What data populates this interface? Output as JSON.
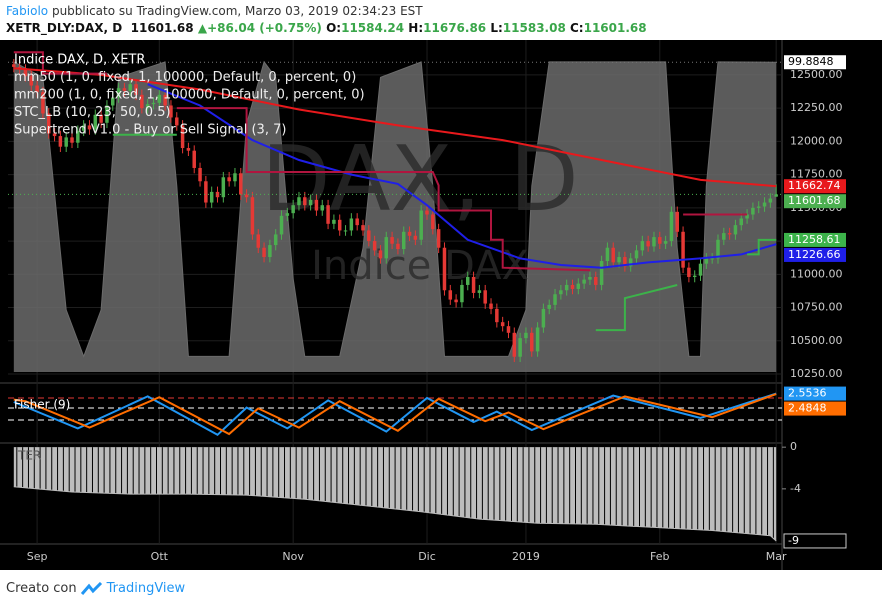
{
  "header": {
    "author": "Fabiolo",
    "published": "pubblicato su TradingView.com, Marzo 03, 2019 02:34:23 EST",
    "symbol": "XETR_DLY:DAX, D",
    "change": "+86.04 (+0.75%)",
    "open_label": "O:",
    "high_label": "H:",
    "low_label": "L:",
    "close_label": "C:"
  },
  "footer": {
    "created": "Creato con",
    "brand": "TradingView"
  },
  "chart_data": [
    {
      "type": "candlestick",
      "name": "Indice DAX, D, XETR",
      "up_color": "#4caf50",
      "down_color": "#e53935",
      "grid": true,
      "price_line": true,
      "watermark": [
        "DAX, D",
        "Indice DAX"
      ],
      "xlim": [
        -1,
        132
      ],
      "xticks": [
        {
          "value": 4,
          "label": "Sep"
        },
        {
          "value": 25,
          "label": "Ott"
        },
        {
          "value": 48,
          "label": "Nov"
        },
        {
          "value": 71,
          "label": "Dic"
        },
        {
          "value": 88,
          "label": "2019"
        },
        {
          "value": 111,
          "label": "Feb"
        },
        {
          "value": 131,
          "label": "Mar"
        }
      ],
      "ylim": [
        10205,
        12710
      ],
      "yticks": [
        {
          "value": 10250,
          "label": "10250.00"
        },
        {
          "value": 10500,
          "label": "10500.00"
        },
        {
          "value": 10750,
          "label": "10750.00"
        },
        {
          "value": 11000,
          "label": "11000.00"
        },
        {
          "value": 11250,
          "label": "11250.00"
        },
        {
          "value": 11500,
          "label": "11500.00"
        },
        {
          "value": 11750,
          "label": "11750.00"
        },
        {
          "value": 12000,
          "label": "12000.00"
        },
        {
          "value": 12250,
          "label": "12250.00"
        },
        {
          "value": 12500,
          "label": "12500.00"
        }
      ],
      "y2lim": [
        -2.6,
        104.8
      ],
      "open": [
        12580,
        12560,
        12540,
        12490,
        12420,
        12370,
        12210,
        12060,
        12040,
        11960,
        12030,
        11990,
        12080,
        12120,
        12090,
        12200,
        12140,
        12270,
        12330,
        12400,
        12380,
        12430,
        12350,
        12250,
        12280,
        12290,
        12350,
        12270,
        12180,
        12120,
        11950,
        11930,
        11800,
        11700,
        11540,
        11620,
        11580,
        11730,
        11700,
        11760,
        11600,
        11580,
        11300,
        11200,
        11130,
        11220,
        11300,
        11440,
        11460,
        11520,
        11580,
        11520,
        11560,
        11480,
        11520,
        11380,
        11410,
        11330,
        11330,
        11420,
        11370,
        11330,
        11250,
        11180,
        11120,
        11280,
        11230,
        11190,
        11320,
        11290,
        11260,
        11480,
        11450,
        11340,
        11200,
        10880,
        10810,
        10790,
        10920,
        10980,
        10860,
        10880,
        10780,
        10740,
        10640,
        10610,
        10560,
        10380,
        10520,
        10560,
        10420,
        10600,
        10740,
        10770,
        10850,
        10880,
        10920,
        10890,
        10930,
        10960,
        10980,
        10920,
        11100,
        11200,
        11090,
        11130,
        11060,
        11120,
        11180,
        11250,
        11210,
        11280,
        11230,
        11250,
        11470,
        11320,
        11050,
        10980,
        10990,
        11080,
        11120,
        11120,
        11260,
        11310,
        11300,
        11370,
        11420,
        11450,
        11500,
        11510,
        11540,
        11584.24
      ],
      "high": [
        12620,
        12600,
        12580,
        12530,
        12460,
        12410,
        12250,
        12100,
        12080,
        12070,
        12070,
        12120,
        12160,
        12160,
        12240,
        12240,
        12310,
        12370,
        12440,
        12440,
        12470,
        12470,
        12390,
        12320,
        12330,
        12390,
        12390,
        12310,
        12220,
        12160,
        11990,
        11970,
        11840,
        11740,
        11660,
        11660,
        11770,
        11770,
        11800,
        11800,
        11640,
        11620,
        11340,
        11240,
        11260,
        11340,
        11480,
        11500,
        11560,
        11620,
        11620,
        11600,
        11600,
        11560,
        11560,
        11450,
        11450,
        11370,
        11460,
        11460,
        11410,
        11370,
        11290,
        11220,
        11320,
        11320,
        11270,
        11360,
        11360,
        11330,
        11520,
        11520,
        11490,
        11380,
        11240,
        10920,
        10850,
        10960,
        11020,
        11020,
        10920,
        10920,
        10820,
        10780,
        10680,
        10650,
        10600,
        10560,
        10600,
        10600,
        10640,
        10780,
        10810,
        10890,
        10920,
        10960,
        10960,
        10970,
        11000,
        11020,
        11020,
        11140,
        11240,
        11240,
        11170,
        11170,
        11160,
        11220,
        11290,
        11290,
        11320,
        11320,
        11290,
        11510,
        11510,
        11360,
        11090,
        11030,
        11120,
        11160,
        11160,
        11300,
        11350,
        11350,
        11410,
        11460,
        11490,
        11540,
        11550,
        11580,
        11610,
        11676.86
      ],
      "low": [
        12520,
        12500,
        12450,
        12380,
        12330,
        12170,
        12020,
        12000,
        11920,
        11920,
        11950,
        11950,
        12040,
        12050,
        12050,
        12100,
        12100,
        12230,
        12290,
        12340,
        12340,
        12310,
        12210,
        12210,
        12240,
        12250,
        12230,
        12140,
        12080,
        11910,
        11890,
        11760,
        11660,
        11500,
        11500,
        11540,
        11540,
        11660,
        11660,
        11560,
        11540,
        11260,
        11160,
        11090,
        11090,
        11180,
        11260,
        11400,
        11420,
        11480,
        11480,
        11480,
        11440,
        11440,
        11340,
        11340,
        11290,
        11290,
        11290,
        11330,
        11290,
        11210,
        11140,
        11080,
        11080,
        11190,
        11150,
        11150,
        11250,
        11220,
        11220,
        11410,
        11300,
        11160,
        10840,
        10770,
        10750,
        10750,
        10880,
        10820,
        10820,
        10740,
        10700,
        10600,
        10570,
        10520,
        10340,
        10340,
        10480,
        10380,
        10380,
        10560,
        10700,
        10730,
        10810,
        10840,
        10850,
        10850,
        10890,
        10920,
        10880,
        10880,
        11060,
        11050,
        11050,
        11020,
        11020,
        11080,
        11140,
        11170,
        11170,
        11190,
        11190,
        11210,
        11280,
        11010,
        10940,
        10940,
        10950,
        11040,
        11080,
        11080,
        11220,
        11260,
        11260,
        11330,
        11380,
        11410,
        11460,
        11470,
        11500,
        11583.08
      ],
      "close": [
        12560,
        12540,
        12490,
        12420,
        12370,
        12210,
        12060,
        12040,
        11960,
        12030,
        11990,
        12080,
        12120,
        12090,
        12200,
        12140,
        12270,
        12330,
        12400,
        12380,
        12430,
        12350,
        12250,
        12280,
        12290,
        12350,
        12270,
        12180,
        12120,
        11950,
        11930,
        11800,
        11700,
        11540,
        11620,
        11580,
        11730,
        11700,
        11760,
        11600,
        11580,
        11300,
        11200,
        11130,
        11220,
        11300,
        11440,
        11460,
        11520,
        11580,
        11520,
        11560,
        11480,
        11520,
        11380,
        11410,
        11330,
        11330,
        11420,
        11370,
        11330,
        11250,
        11180,
        11120,
        11280,
        11230,
        11190,
        11320,
        11290,
        11260,
        11480,
        11450,
        11340,
        11200,
        10880,
        10810,
        10790,
        10920,
        10980,
        10860,
        10880,
        10780,
        10740,
        10640,
        10610,
        10560,
        10380,
        10520,
        10560,
        10420,
        10600,
        10740,
        10770,
        10850,
        10880,
        10920,
        10890,
        10930,
        10960,
        10980,
        10920,
        11100,
        11200,
        11090,
        11130,
        11060,
        11120,
        11180,
        11250,
        11210,
        11280,
        11230,
        11250,
        11470,
        11320,
        11050,
        10980,
        10990,
        11080,
        11120,
        11120,
        11260,
        11310,
        11300,
        11370,
        11420,
        11450,
        11500,
        11510,
        11540,
        11570,
        11601.68
      ],
      "series": [
        {
          "name": "mm50 (1, 0, fixed, 1, 100000, Default, 0, percent, 0)",
          "color": "#1f1fe8",
          "price_label": true,
          "x": [
            23,
            32,
            41,
            49,
            58,
            66,
            71,
            78,
            87,
            94,
            101,
            109,
            118,
            125,
            131
          ],
          "values": [
            12430,
            12270,
            12010,
            11860,
            11750,
            11680,
            11520,
            11260,
            11120,
            11070,
            11050,
            11090,
            11120,
            11150,
            11226.66
          ]
        },
        {
          "name": "mm200 (1, 0, fixed, 1, 100000, Default, 0, percent, 0)",
          "color": "#e8191c",
          "price_label": true,
          "x": [
            0,
            15,
            32,
            49,
            66,
            84,
            101,
            118,
            131
          ],
          "values": [
            12550,
            12500,
            12390,
            12240,
            12120,
            12010,
            11860,
            11710,
            11662.74
          ]
        },
        {
          "name": "STC_LB (10, 23, 50, 0.5)",
          "type": "area",
          "axis": "y2",
          "color": "#6b6b6b",
          "price_label": true,
          "price_line": true,
          "label_background": "#ffffff",
          "x": [
            0,
            5,
            9,
            12,
            15,
            18,
            26,
            28,
            30,
            37,
            40,
            43,
            45,
            48,
            50,
            56,
            60,
            63,
            70,
            72,
            74,
            85,
            88,
            89,
            92,
            112,
            114,
            116,
            118,
            119,
            121,
            131
          ],
          "values": [
            100,
            95,
            20,
            5,
            20,
            95,
            100,
            60,
            5,
            5,
            80,
            100,
            95,
            30,
            5,
            5,
            40,
            95,
            100,
            60,
            5,
            5,
            20,
            60,
            100,
            100,
            40,
            5,
            5,
            60,
            100,
            99.8848
          ]
        },
        {
          "name": "Supertrend V1.0 - Buy or Sell Signal (3, 7)",
          "color": "#b0153f",
          "x": [
            0,
            5,
            5,
            16,
            17,
            28,
            40,
            40,
            72,
            73,
            73,
            82,
            82,
            84,
            84,
            99,
            100,
            115,
            126
          ],
          "values": [
            12670,
            12670,
            12510,
            12510,
            null,
            12250,
            12250,
            11770,
            11770,
            11670,
            11480,
            11480,
            11260,
            11260,
            11050,
            11030,
            null,
            11450,
            11450
          ]
        },
        {
          "color": "#3cb34a",
          "price_label": true,
          "x": [
            17,
            28,
            29,
            100,
            105,
            105,
            114,
            115,
            126,
            128,
            128,
            131
          ],
          "values": [
            12050,
            12050,
            null,
            10580,
            10580,
            10820,
            10920,
            null,
            11150,
            11150,
            11258.61,
            11258.61
          ]
        }
      ]
    },
    {
      "type": "line",
      "title": "Fisher (9)",
      "ylim": [
        -3.5,
        3.5
      ],
      "levels": [
        {
          "value": 2,
          "color": "#e53935"
        },
        {
          "value": 0.75,
          "color": "#ffffff"
        },
        {
          "value": -0.75,
          "color": "#ffffff"
        }
      ],
      "series": [
        {
          "color": "#2196f3",
          "price_label": true,
          "x": [
            0,
            11,
            23,
            35,
            40,
            47,
            54,
            64,
            71,
            79,
            83,
            89,
            103,
            118,
            131
          ],
          "values": [
            1.5,
            -1.8,
            2.2,
            -2.6,
            0.8,
            -1.8,
            1.7,
            -2.2,
            2.0,
            -1.0,
            0.3,
            -2.0,
            2.3,
            -0.5,
            2.5536
          ]
        },
        {
          "color": "#ff6d00",
          "price_label": true,
          "x": [
            0,
            2,
            13,
            25,
            37,
            42,
            49,
            56,
            66,
            73,
            81,
            85,
            91,
            105,
            120,
            131
          ],
          "values": [
            1.8,
            1.6,
            -1.7,
            2.1,
            -2.5,
            0.7,
            -1.7,
            1.6,
            -2.1,
            1.9,
            -0.9,
            0.2,
            -1.9,
            2.2,
            -0.4,
            2.4848
          ]
        }
      ]
    },
    {
      "type": "area",
      "title": "TER",
      "color": "#bdbdbd",
      "ylim": [
        -9.1,
        0.4
      ],
      "yticks": [
        0,
        -4
      ],
      "price_label": true,
      "x": [
        0,
        10,
        20,
        30,
        40,
        50,
        60,
        70,
        80,
        90,
        100,
        110,
        120,
        130,
        131
      ],
      "values": [
        -3.8,
        -4.3,
        -4.5,
        -4.5,
        -4.6,
        -5.0,
        -5.6,
        -6.2,
        -6.9,
        -7.3,
        -7.4,
        -7.7,
        -8.0,
        -8.5,
        -9
      ]
    }
  ]
}
